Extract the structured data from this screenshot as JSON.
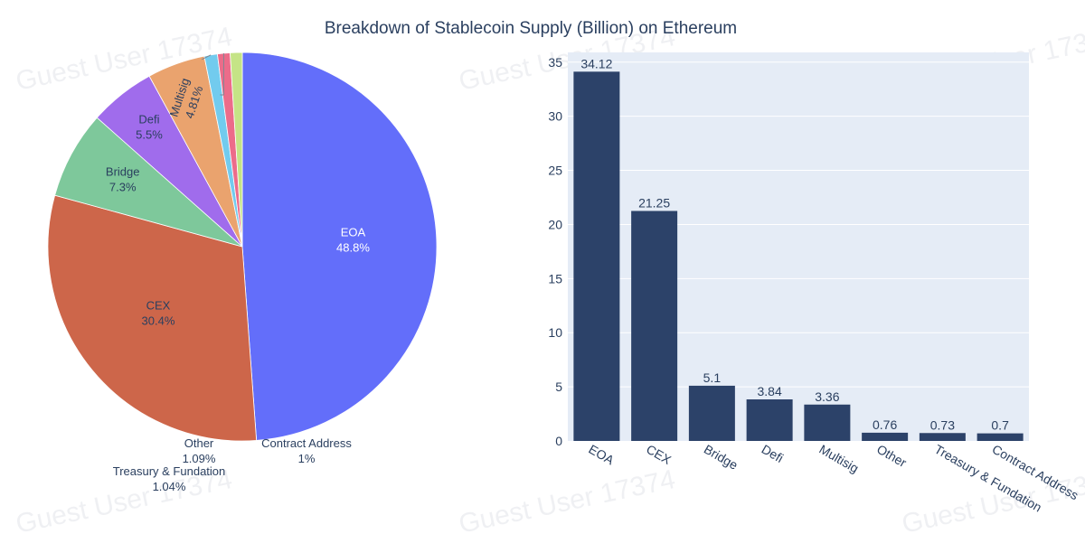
{
  "chart_data": [
    {
      "type": "pie",
      "title": "Breakdown of Stablecoin Supply (Billion) on Ethereum",
      "slices": [
        {
          "label": "EOA",
          "percent_label": "48.8%",
          "value": 34.12,
          "color": "#636efa"
        },
        {
          "label": "CEX",
          "percent_label": "30.4%",
          "value": 21.25,
          "color": "#cd664a"
        },
        {
          "label": "Bridge",
          "percent_label": "7.3%",
          "value": 5.1,
          "color": "#7ec89b"
        },
        {
          "label": "Defi",
          "percent_label": "5.5%",
          "value": 3.84,
          "color": "#a06cec"
        },
        {
          "label": "Multisig",
          "percent_label": "4.81%",
          "value": 3.36,
          "color": "#eaa36e"
        },
        {
          "label": "Other",
          "percent_label": "1.09%",
          "value": 0.76,
          "color": "#72cbee"
        },
        {
          "label": "Treasury & Fundation",
          "percent_label": "1.04%",
          "value": 0.73,
          "color": "#ec6c8a"
        },
        {
          "label": "Contract Address",
          "percent_label": "1%",
          "value": 0.7,
          "color": "#c5e486"
        }
      ]
    },
    {
      "type": "bar",
      "categories": [
        "EOA",
        "CEX",
        "Bridge",
        "Defi",
        "Multisig",
        "Other",
        "Treasury & Fundation",
        "Contract Address"
      ],
      "values": [
        34.12,
        21.25,
        5.1,
        3.84,
        3.36,
        0.76,
        0.73,
        0.7
      ],
      "value_labels": [
        "34.12",
        "21.25",
        "5.1",
        "3.84",
        "3.36",
        "0.76",
        "0.73",
        "0.7"
      ],
      "yticks": [
        0,
        5,
        10,
        15,
        20,
        25,
        30,
        35
      ],
      "ylim": [
        0,
        35.9
      ],
      "xlabel": "",
      "ylabel": "",
      "bar_color": "#2c4269",
      "plot_bg": "#e5ecf6",
      "grid": true
    }
  ],
  "watermark": "Guest User 17374"
}
